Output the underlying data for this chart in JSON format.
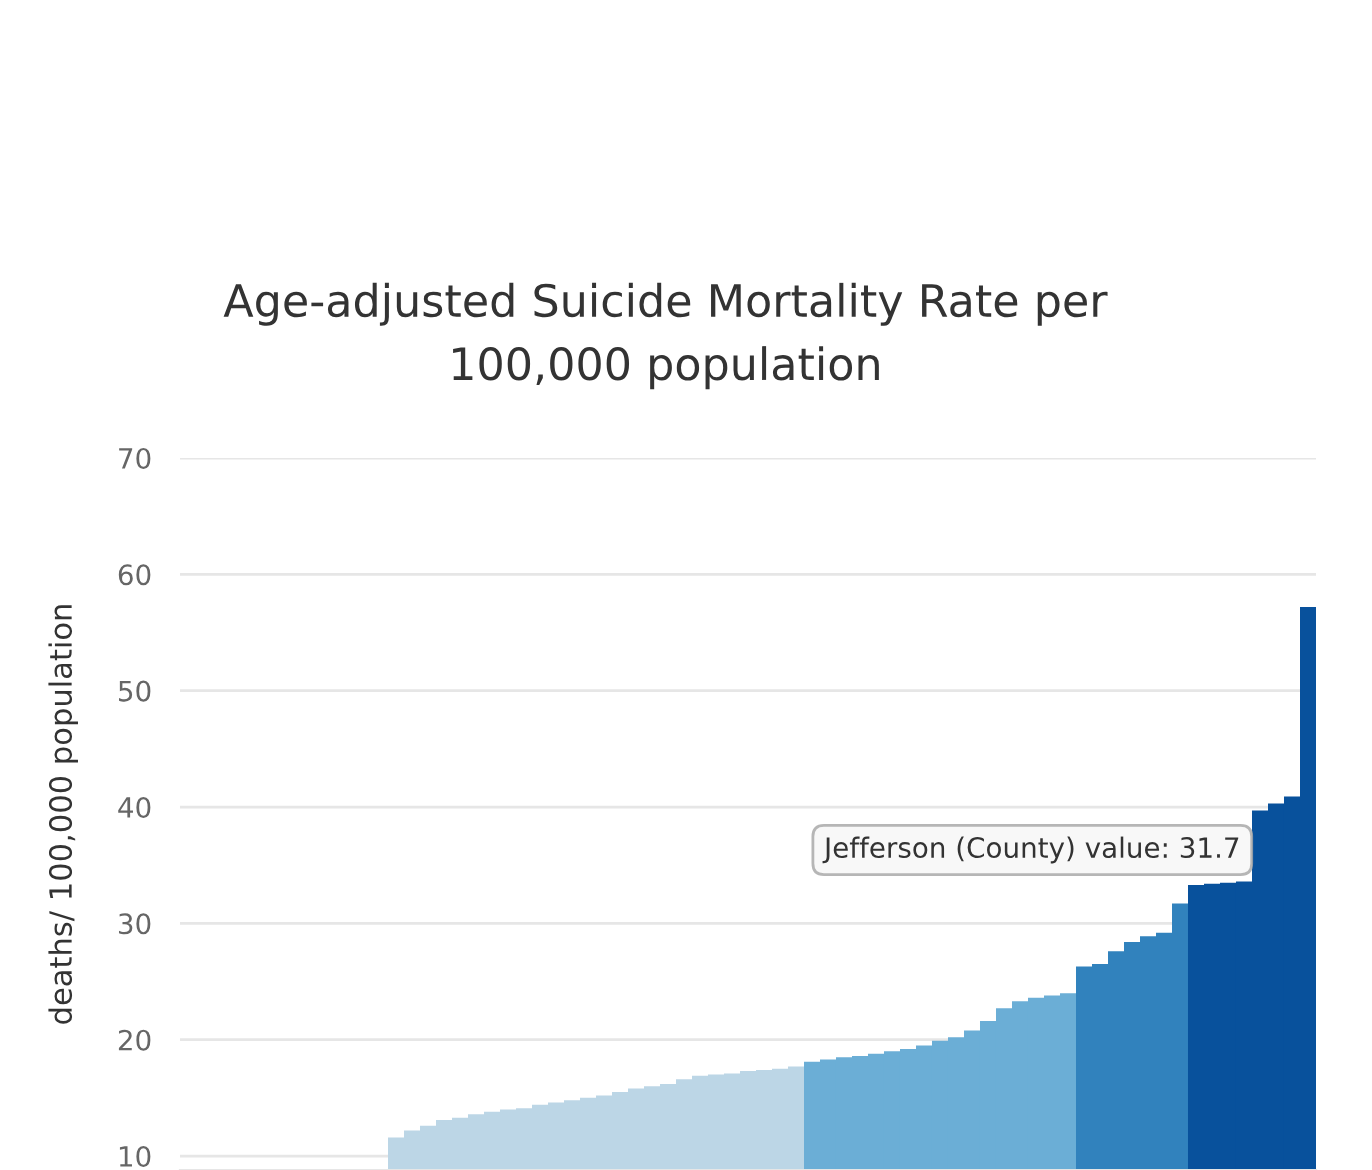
{
  "chart_data": {
    "type": "bar",
    "title": "Age-adjusted Suicide Mortality Rate per\n100,000 population",
    "ylabel": "deaths/ 100,000 population",
    "categories": [
      null,
      null,
      null,
      null,
      null,
      null,
      null,
      null,
      null,
      null,
      null,
      null,
      null,
      null,
      null,
      null,
      null,
      null,
      null,
      null,
      null,
      null,
      null,
      null,
      null,
      null,
      null,
      null,
      null,
      null,
      null,
      null,
      null,
      null,
      null,
      null,
      null,
      null,
      null,
      null,
      null,
      null,
      null,
      null,
      null,
      null,
      null,
      null,
      null,
      null,
      null,
      null,
      null,
      null,
      null,
      null,
      null,
      null,
      null,
      null,
      null,
      null,
      null,
      null,
      null,
      null,
      null,
      null,
      null,
      null,
      null
    ],
    "values": [
      null,
      null,
      null,
      null,
      null,
      null,
      null,
      null,
      null,
      null,
      null,
      null,
      null,
      11.6,
      12.2,
      12.6,
      13.1,
      13.3,
      13.6,
      13.8,
      14.0,
      14.1,
      14.4,
      14.6,
      14.8,
      15.0,
      15.2,
      15.5,
      15.8,
      16.0,
      16.2,
      16.6,
      16.9,
      17.0,
      17.1,
      17.3,
      17.4,
      17.5,
      17.7,
      18.1,
      18.3,
      18.5,
      18.6,
      18.8,
      19.0,
      19.2,
      19.5,
      19.9,
      20.2,
      20.8,
      21.6,
      22.7,
      23.3,
      23.6,
      23.8,
      24.0,
      26.3,
      26.5,
      27.6,
      28.4,
      28.9,
      29.2,
      31.7,
      33.3,
      33.4,
      33.5,
      33.6,
      39.7,
      40.3,
      40.9,
      57.2
    ],
    "colors": [
      "#bcd6e6",
      "#bcd6e6",
      "#bcd6e6",
      "#bcd6e6",
      "#bcd6e6",
      "#bcd6e6",
      "#bcd6e6",
      "#bcd6e6",
      "#bcd6e6",
      "#bcd6e6",
      "#bcd6e6",
      "#bcd6e6",
      "#bcd6e6",
      "#bcd6e6",
      "#bcd6e6",
      "#bcd6e6",
      "#bcd6e6",
      "#bcd6e6",
      "#bcd6e6",
      "#bcd6e6",
      "#bcd6e6",
      "#bcd6e6",
      "#bcd6e6",
      "#bcd6e6",
      "#bcd6e6",
      "#bcd6e6",
      "#bcd6e6",
      "#bcd6e6",
      "#bcd6e6",
      "#bcd6e6",
      "#bcd6e6",
      "#bcd6e6",
      "#bcd6e6",
      "#bcd6e6",
      "#bcd6e6",
      "#bcd6e6",
      "#bcd6e6",
      "#bcd6e6",
      "#bcd6e6",
      "#6baed6",
      "#6baed6",
      "#6baed6",
      "#6baed6",
      "#6baed6",
      "#6baed6",
      "#6baed6",
      "#6baed6",
      "#6baed6",
      "#6baed6",
      "#6baed6",
      "#6baed6",
      "#6baed6",
      "#6baed6",
      "#6baed6",
      "#6baed6",
      "#6baed6",
      "#3182bd",
      "#3182bd",
      "#3182bd",
      "#3182bd",
      "#3182bd",
      "#3182bd",
      "#3182bd",
      "#08519c",
      "#08519c",
      "#08519c",
      "#08519c",
      "#08519c",
      "#08519c",
      "#08519c",
      "#08519c"
    ],
    "ylim": [
      8.8,
      70
    ],
    "yticks": [
      10,
      20,
      30,
      40,
      50,
      60,
      70
    ],
    "grid": "y",
    "tick_labels": "y",
    "annotations": [
      "Jefferson (County) value: 31.7"
    ]
  }
}
